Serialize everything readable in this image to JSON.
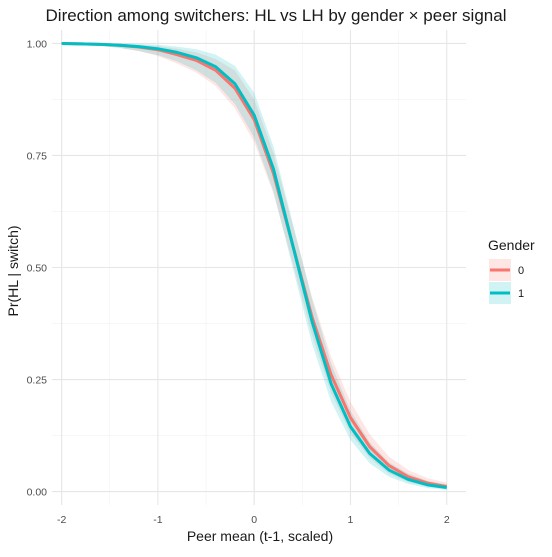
{
  "chart_data": {
    "type": "line",
    "title": "Direction among switchers: HL vs LH by gender × peer signal",
    "xlabel": "Peer mean (t-1, scaled)",
    "ylabel": "Pr(HL | switch)",
    "xlim": [
      -2.1,
      2.2
    ],
    "ylim": [
      -0.03,
      1.03
    ],
    "xticks": [
      -2,
      -1,
      0,
      1,
      2
    ],
    "xtick_labels": [
      "-2",
      "-1",
      "0",
      "1",
      "2"
    ],
    "yticks": [
      0,
      0.25,
      0.5,
      0.75,
      1.0
    ],
    "ytick_labels": [
      "0.00",
      "0.25",
      "0.50",
      "0.75",
      "1.00"
    ],
    "grid": true,
    "legend": {
      "title": "Gender",
      "position": "right"
    },
    "x": [
      -2.0,
      -1.8,
      -1.6,
      -1.4,
      -1.2,
      -1.0,
      -0.8,
      -0.6,
      -0.4,
      -0.2,
      0.0,
      0.2,
      0.4,
      0.6,
      0.8,
      1.0,
      1.2,
      1.4,
      1.6,
      1.8,
      2.0
    ],
    "series": [
      {
        "name": "0",
        "color": "#F8766D",
        "fill": "#F8766D",
        "values": [
          1.0,
          0.999,
          0.998,
          0.996,
          0.992,
          0.986,
          0.975,
          0.962,
          0.94,
          0.9,
          0.83,
          0.71,
          0.55,
          0.39,
          0.26,
          0.165,
          0.1,
          0.058,
          0.033,
          0.019,
          0.011
        ],
        "lower": [
          0.999,
          0.998,
          0.995,
          0.99,
          0.983,
          0.972,
          0.955,
          0.935,
          0.905,
          0.855,
          0.78,
          0.665,
          0.51,
          0.35,
          0.22,
          0.13,
          0.075,
          0.04,
          0.021,
          0.011,
          0.005
        ],
        "upper": [
          1.0,
          1.0,
          1.0,
          0.999,
          0.997,
          0.994,
          0.988,
          0.98,
          0.965,
          0.94,
          0.875,
          0.755,
          0.595,
          0.435,
          0.3,
          0.2,
          0.128,
          0.078,
          0.048,
          0.03,
          0.02
        ]
      },
      {
        "name": "1",
        "color": "#00BFC4",
        "fill": "#00BFC4",
        "values": [
          1.0,
          0.999,
          0.998,
          0.996,
          0.993,
          0.988,
          0.98,
          0.968,
          0.948,
          0.91,
          0.84,
          0.72,
          0.55,
          0.38,
          0.24,
          0.145,
          0.085,
          0.048,
          0.027,
          0.015,
          0.009
        ],
        "lower": [
          0.999,
          0.998,
          0.995,
          0.99,
          0.983,
          0.974,
          0.96,
          0.94,
          0.912,
          0.865,
          0.79,
          0.67,
          0.5,
          0.33,
          0.2,
          0.115,
          0.063,
          0.033,
          0.017,
          0.008,
          0.004
        ],
        "upper": [
          1.0,
          1.0,
          1.0,
          1.0,
          0.999,
          0.997,
          0.993,
          0.987,
          0.975,
          0.95,
          0.89,
          0.77,
          0.6,
          0.43,
          0.285,
          0.18,
          0.11,
          0.065,
          0.04,
          0.024,
          0.016
        ]
      }
    ]
  }
}
